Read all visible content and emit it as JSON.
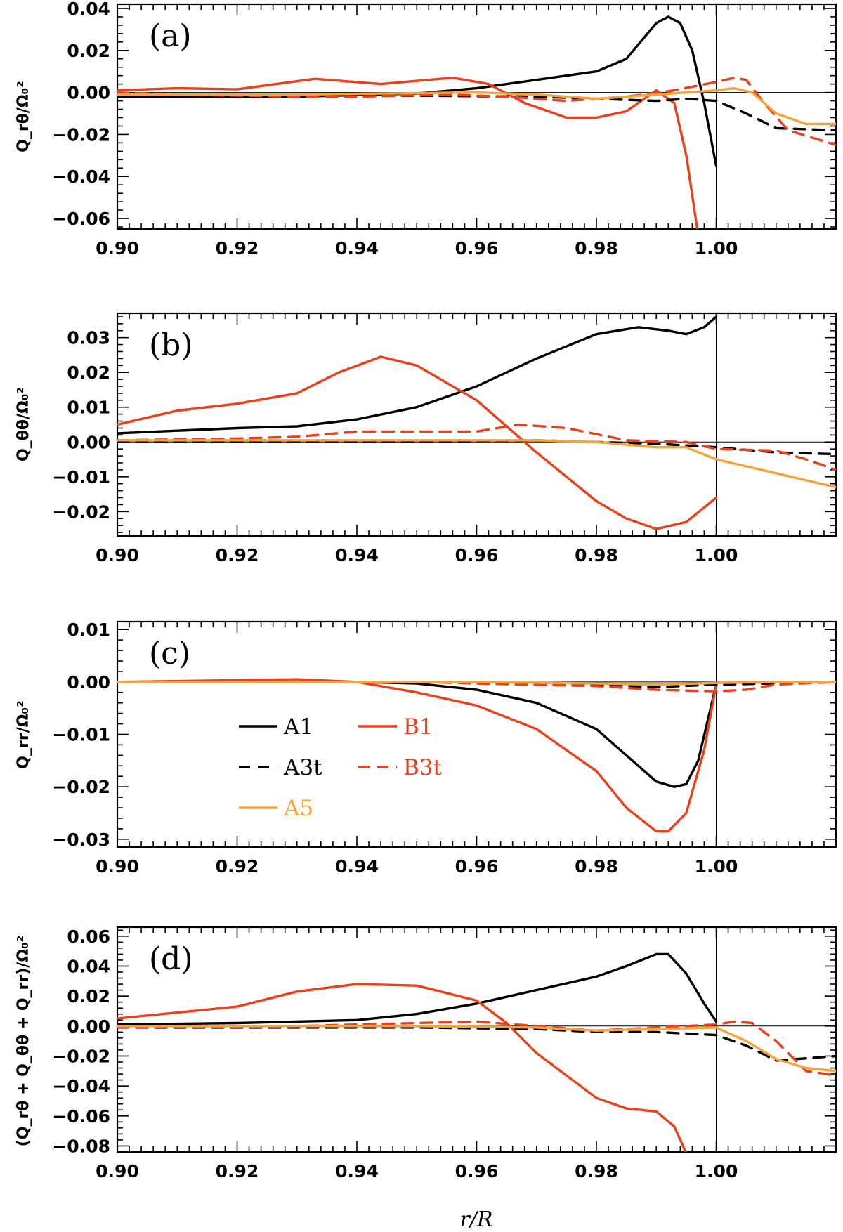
{
  "figure": {
    "xlabel": "r/R"
  },
  "legend": [
    {
      "name": "A1",
      "color": "#000000",
      "dash": false
    },
    {
      "name": "B1",
      "color": "#e8411b",
      "dash": false
    },
    {
      "name": "A3t",
      "color": "#000000",
      "dash": true
    },
    {
      "name": "B3t",
      "color": "#e8411b",
      "dash": true
    },
    {
      "name": "A5",
      "color": "#f5a43c",
      "dash": false
    }
  ],
  "chart_data": [
    {
      "type": "line",
      "panel": "(a)",
      "ylabel": "Q_rθ/Ω₀²",
      "xlabel": "",
      "xlim": [
        0.9,
        1.02
      ],
      "ylim": [
        -0.065,
        0.042
      ],
      "xticks": [
        0.9,
        0.92,
        0.94,
        0.96,
        0.98,
        1.0
      ],
      "xtick_labels": [
        "0.90",
        "0.92",
        "0.94",
        "0.96",
        "0.98",
        "1.00"
      ],
      "yticks": [
        0.04,
        0.02,
        0.0,
        -0.02,
        -0.04,
        -0.06
      ],
      "ytick_labels": [
        "0.04",
        "0.02",
        "0.00",
        "−0.02",
        "−0.04",
        "−0.06"
      ],
      "series": [
        {
          "name": "A1",
          "x": [
            0.9,
            0.93,
            0.95,
            0.96,
            0.97,
            0.98,
            0.985,
            0.99,
            0.992,
            0.994,
            0.996,
            0.998,
            1.0
          ],
          "y": [
            -0.002,
            -0.002,
            -0.0005,
            0.002,
            0.006,
            0.01,
            0.016,
            0.033,
            0.036,
            0.033,
            0.02,
            -0.005,
            -0.035
          ]
        },
        {
          "name": "B1",
          "x": [
            0.9,
            0.91,
            0.92,
            0.933,
            0.944,
            0.956,
            0.962,
            0.968,
            0.975,
            0.98,
            0.985,
            0.99,
            0.993,
            0.995,
            0.997
          ],
          "y": [
            0.001,
            0.002,
            0.0015,
            0.0065,
            0.004,
            0.007,
            0.004,
            -0.005,
            -0.012,
            -0.012,
            -0.009,
            0.001,
            -0.005,
            -0.03,
            -0.068
          ]
        },
        {
          "name": "A3t",
          "x": [
            0.9,
            0.93,
            0.95,
            0.97,
            0.98,
            0.99,
            0.995,
            1.0,
            1.005,
            1.01,
            1.02
          ],
          "y": [
            -0.002,
            -0.002,
            -0.0015,
            -0.002,
            -0.003,
            -0.004,
            -0.003,
            -0.004,
            -0.01,
            -0.017,
            -0.018
          ]
        },
        {
          "name": "B3t",
          "x": [
            0.9,
            0.91,
            0.93,
            0.94,
            0.955,
            0.965,
            0.975,
            0.985,
            0.993,
            1.0,
            1.003,
            1.005,
            1.008,
            1.012,
            1.02
          ],
          "y": [
            0.0,
            -0.001,
            -0.002,
            -0.002,
            -0.001,
            -0.002,
            -0.004,
            -0.002,
            0.001,
            0.005,
            0.007,
            0.006,
            -0.005,
            -0.018,
            -0.025
          ]
        },
        {
          "name": "A5",
          "x": [
            0.9,
            0.93,
            0.96,
            0.97,
            0.98,
            0.99,
            0.995,
            1.0,
            1.003,
            1.006,
            1.01,
            1.015,
            1.02
          ],
          "y": [
            -0.001,
            -0.001,
            0.0,
            -0.001,
            -0.003,
            -0.001,
            0.0,
            0.001,
            0.002,
            0.0,
            -0.01,
            -0.015,
            -0.015
          ]
        }
      ]
    },
    {
      "type": "line",
      "panel": "(b)",
      "ylabel": "Q_θθ/Ω₀²",
      "xlabel": "",
      "xlim": [
        0.9,
        1.02
      ],
      "ylim": [
        -0.027,
        0.037
      ],
      "xticks": [
        0.9,
        0.92,
        0.94,
        0.96,
        0.98,
        1.0
      ],
      "xtick_labels": [
        "0.90",
        "0.92",
        "0.94",
        "0.96",
        "0.98",
        "1.00"
      ],
      "yticks": [
        0.03,
        0.02,
        0.01,
        0.0,
        -0.01,
        -0.02
      ],
      "ytick_labels": [
        "0.03",
        "0.02",
        "0.01",
        "0.00",
        "−0.01",
        "−0.02"
      ],
      "series": [
        {
          "name": "A1",
          "x": [
            0.9,
            0.92,
            0.93,
            0.94,
            0.95,
            0.96,
            0.97,
            0.98,
            0.987,
            0.992,
            0.995,
            0.998,
            1.0
          ],
          "y": [
            0.0025,
            0.004,
            0.0045,
            0.0065,
            0.01,
            0.016,
            0.024,
            0.031,
            0.033,
            0.032,
            0.031,
            0.033,
            0.036
          ]
        },
        {
          "name": "B1",
          "x": [
            0.9,
            0.91,
            0.92,
            0.93,
            0.937,
            0.944,
            0.95,
            0.96,
            0.97,
            0.98,
            0.985,
            0.99,
            0.995,
            1.0
          ],
          "y": [
            0.005,
            0.009,
            0.011,
            0.014,
            0.02,
            0.0245,
            0.022,
            0.012,
            -0.003,
            -0.017,
            -0.022,
            -0.025,
            -0.023,
            -0.016
          ]
        },
        {
          "name": "A3t",
          "x": [
            0.9,
            0.95,
            0.97,
            0.98,
            0.99,
            1.0,
            1.01,
            1.02
          ],
          "y": [
            0.0,
            0.0,
            0.0005,
            0.0,
            -0.0005,
            -0.0015,
            -0.003,
            -0.0035
          ]
        },
        {
          "name": "B3t",
          "x": [
            0.9,
            0.92,
            0.93,
            0.94,
            0.96,
            0.967,
            0.975,
            0.985,
            0.995,
            1.0,
            1.01,
            1.015,
            1.02
          ],
          "y": [
            0.0005,
            0.001,
            0.0015,
            0.003,
            0.003,
            0.005,
            0.004,
            0.0005,
            0.0,
            -0.002,
            -0.0025,
            -0.005,
            -0.008
          ]
        },
        {
          "name": "A5",
          "x": [
            0.9,
            0.95,
            0.97,
            0.98,
            0.99,
            0.995,
            1.0,
            1.01,
            1.02
          ],
          "y": [
            0.0005,
            0.0005,
            0.0005,
            0.0,
            -0.0015,
            -0.0015,
            -0.005,
            -0.009,
            -0.013
          ]
        }
      ]
    },
    {
      "type": "line",
      "panel": "(c)",
      "ylabel": "Q_rr/Ω₀²",
      "xlabel": "",
      "xlim": [
        0.9,
        1.02
      ],
      "ylim": [
        -0.0315,
        0.0115
      ],
      "xticks": [
        0.9,
        0.92,
        0.94,
        0.96,
        0.98,
        1.0
      ],
      "xtick_labels": [
        "0.90",
        "0.92",
        "0.94",
        "0.96",
        "0.98",
        "1.00"
      ],
      "yticks": [
        0.01,
        0.0,
        -0.01,
        -0.02,
        -0.03
      ],
      "ytick_labels": [
        "0.01",
        "0.00",
        "−0.01",
        "−0.02",
        "−0.03"
      ],
      "series": [
        {
          "name": "A1",
          "x": [
            0.9,
            0.94,
            0.95,
            0.96,
            0.97,
            0.98,
            0.985,
            0.99,
            0.993,
            0.995,
            0.997,
            1.0
          ],
          "y": [
            0.0,
            0.0,
            -0.0003,
            -0.0015,
            -0.004,
            -0.009,
            -0.014,
            -0.019,
            -0.02,
            -0.0195,
            -0.015,
            -0.0005
          ]
        },
        {
          "name": "B1",
          "x": [
            0.9,
            0.93,
            0.94,
            0.95,
            0.96,
            0.97,
            0.98,
            0.985,
            0.99,
            0.992,
            0.995,
            0.998,
            1.0
          ],
          "y": [
            0.0,
            0.0005,
            0.0,
            -0.002,
            -0.0045,
            -0.009,
            -0.017,
            -0.024,
            -0.0285,
            -0.0285,
            -0.025,
            -0.013,
            -0.0005
          ]
        },
        {
          "name": "A3t",
          "x": [
            0.9,
            0.95,
            0.97,
            0.98,
            0.99,
            1.0,
            1.01,
            1.02
          ],
          "y": [
            0.0,
            0.0,
            -0.0002,
            -0.0005,
            -0.001,
            -0.0005,
            -0.0003,
            0.0
          ]
        },
        {
          "name": "B3t",
          "x": [
            0.9,
            0.95,
            0.96,
            0.98,
            0.99,
            1.0,
            1.005,
            1.01,
            1.02
          ],
          "y": [
            0.0,
            0.0,
            -0.0003,
            -0.0008,
            -0.0015,
            -0.0018,
            -0.0015,
            -0.0005,
            0.0
          ]
        },
        {
          "name": "A5",
          "x": [
            0.9,
            0.96,
            0.98,
            0.99,
            1.0,
            1.01,
            1.02
          ],
          "y": [
            0.0,
            0.0,
            -0.0003,
            -0.0005,
            -0.0002,
            0.0,
            0.0
          ]
        }
      ]
    },
    {
      "type": "line",
      "panel": "(d)",
      "ylabel": "(Q_rθ + Q_θθ + Q_rr)/Ω₀²",
      "xlabel": "r/R",
      "xlim": [
        0.9,
        1.02
      ],
      "ylim": [
        -0.084,
        0.066
      ],
      "xticks": [
        0.9,
        0.92,
        0.94,
        0.96,
        0.98,
        1.0
      ],
      "xtick_labels": [
        "0.90",
        "0.92",
        "0.94",
        "0.96",
        "0.98",
        "1.00"
      ],
      "yticks": [
        0.06,
        0.04,
        0.02,
        0.0,
        -0.02,
        -0.04,
        -0.06,
        -0.08
      ],
      "ytick_labels": [
        "0.06",
        "0.04",
        "0.02",
        "0.00",
        "−0.02",
        "−0.04",
        "−0.06",
        "−0.08"
      ],
      "series": [
        {
          "name": "A1",
          "x": [
            0.9,
            0.92,
            0.94,
            0.95,
            0.96,
            0.97,
            0.98,
            0.985,
            0.99,
            0.992,
            0.995,
            0.998,
            1.0
          ],
          "y": [
            0.001,
            0.002,
            0.004,
            0.008,
            0.015,
            0.024,
            0.033,
            0.04,
            0.048,
            0.048,
            0.035,
            0.015,
            0.003
          ]
        },
        {
          "name": "B1",
          "x": [
            0.9,
            0.92,
            0.93,
            0.94,
            0.95,
            0.96,
            0.965,
            0.97,
            0.98,
            0.985,
            0.99,
            0.993,
            0.995
          ],
          "y": [
            0.005,
            0.013,
            0.023,
            0.028,
            0.027,
            0.017,
            0.002,
            -0.018,
            -0.048,
            -0.055,
            -0.057,
            -0.067,
            -0.085
          ]
        },
        {
          "name": "A3t",
          "x": [
            0.9,
            0.95,
            0.97,
            0.98,
            0.99,
            1.0,
            1.005,
            1.01,
            1.02
          ],
          "y": [
            -0.001,
            -0.001,
            -0.002,
            -0.004,
            -0.004,
            -0.006,
            -0.013,
            -0.023,
            -0.02
          ]
        },
        {
          "name": "B3t",
          "x": [
            0.9,
            0.93,
            0.95,
            0.96,
            0.97,
            0.98,
            0.99,
            1.0,
            1.003,
            1.006,
            1.01,
            1.015,
            1.02
          ],
          "y": [
            -0.001,
            0.0,
            0.002,
            0.003,
            0.0,
            -0.003,
            -0.001,
            0.001,
            0.003,
            0.002,
            -0.01,
            -0.03,
            -0.033
          ]
        },
        {
          "name": "A5",
          "x": [
            0.9,
            0.95,
            0.97,
            0.98,
            0.99,
            1.0,
            1.005,
            1.01,
            1.015,
            1.02
          ],
          "y": [
            0.0,
            0.0,
            -0.001,
            -0.003,
            -0.002,
            -0.001,
            -0.01,
            -0.022,
            -0.028,
            -0.03
          ]
        }
      ]
    }
  ]
}
